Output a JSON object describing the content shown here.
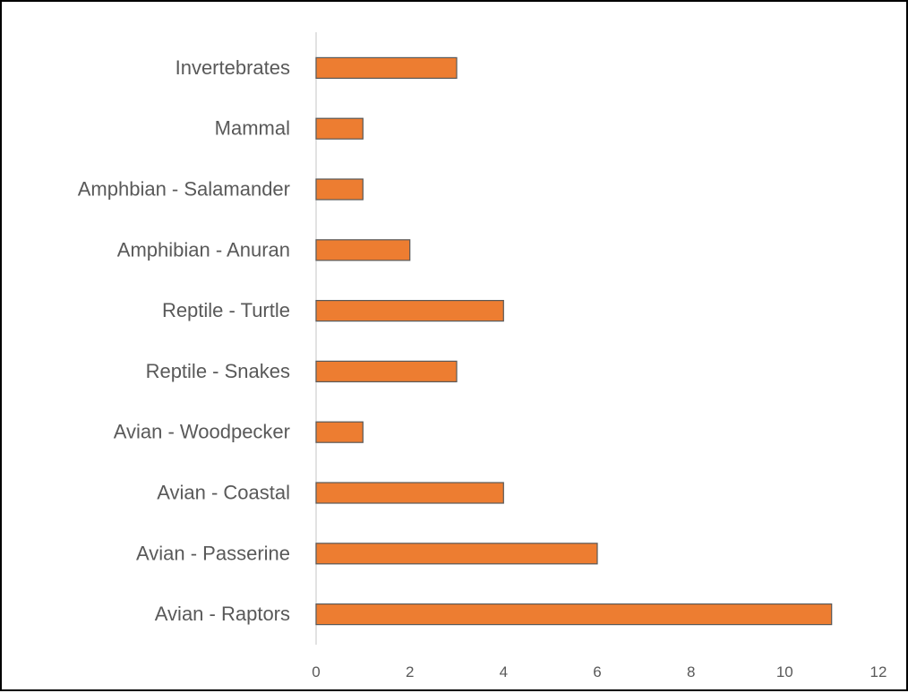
{
  "chart_data": {
    "type": "bar",
    "orientation": "horizontal",
    "categories": [
      "Avian - Raptors",
      "Avian - Passerine",
      "Avian - Coastal",
      "Avian - Woodpecker",
      "Reptile - Snakes",
      "Reptile - Turtle",
      "Amphibian - Anuran",
      "Amphbian - Salamander",
      "Mammal",
      "Invertebrates"
    ],
    "values": [
      11,
      6,
      4,
      1,
      3,
      4,
      2,
      1,
      1,
      3
    ],
    "xlim": [
      0,
      12
    ],
    "x_ticks": [
      0,
      2,
      4,
      6,
      8,
      10,
      12
    ],
    "title": "",
    "xlabel": "",
    "ylabel": "",
    "grid": false,
    "legend": "none",
    "colors": {
      "bar_fill": "#ED7D31",
      "bar_stroke": "#595959",
      "axis_line": "#D9D9D9",
      "label_text": "#595959",
      "frame": "#000000"
    }
  }
}
